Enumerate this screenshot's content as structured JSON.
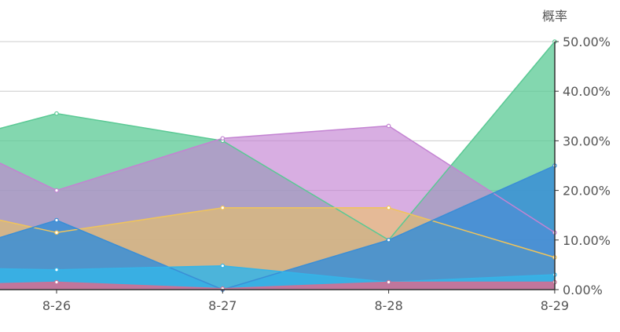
{
  "chart_data": {
    "type": "area",
    "title": "",
    "xlabel": "",
    "ylabel": "概率",
    "categories": [
      "8-26",
      "8-27",
      "8-28",
      "8-29"
    ],
    "ylim": [
      0,
      50
    ],
    "y_ticks": [
      0,
      10,
      20,
      30,
      40,
      50
    ],
    "y_tick_labels": [
      "0.00%",
      "10.00%",
      "20.00%",
      "30.00%",
      "40.00%",
      "50.00%"
    ],
    "y_axis_position": "right",
    "grid": true,
    "series": [
      {
        "color": "#5ac994",
        "fill_opacity": 0.75,
        "start": 32.5,
        "values": [
          35.5,
          30.0,
          10.0,
          50.0
        ]
      },
      {
        "color": "#c383d2",
        "fill_opacity": 0.65,
        "start": 25.5,
        "values": [
          20.0,
          30.5,
          33.0,
          11.5
        ]
      },
      {
        "color": "#f0c45a",
        "fill_opacity": 0.55,
        "start": 14.0,
        "values": [
          11.5,
          16.5,
          16.5,
          6.5
        ]
      },
      {
        "color": "#3a8ed6",
        "fill_opacity": 0.85,
        "start": 10.5,
        "values": [
          14.0,
          0.0,
          10.0,
          25.0
        ]
      },
      {
        "color": "#35b4e8",
        "fill_opacity": 0.85,
        "start": 4.2,
        "values": [
          4.0,
          4.8,
          1.5,
          3.0
        ]
      },
      {
        "color": "#c77398",
        "fill_opacity": 0.95,
        "start": 1.2,
        "values": [
          1.5,
          0.2,
          1.5,
          1.5
        ]
      }
    ]
  }
}
